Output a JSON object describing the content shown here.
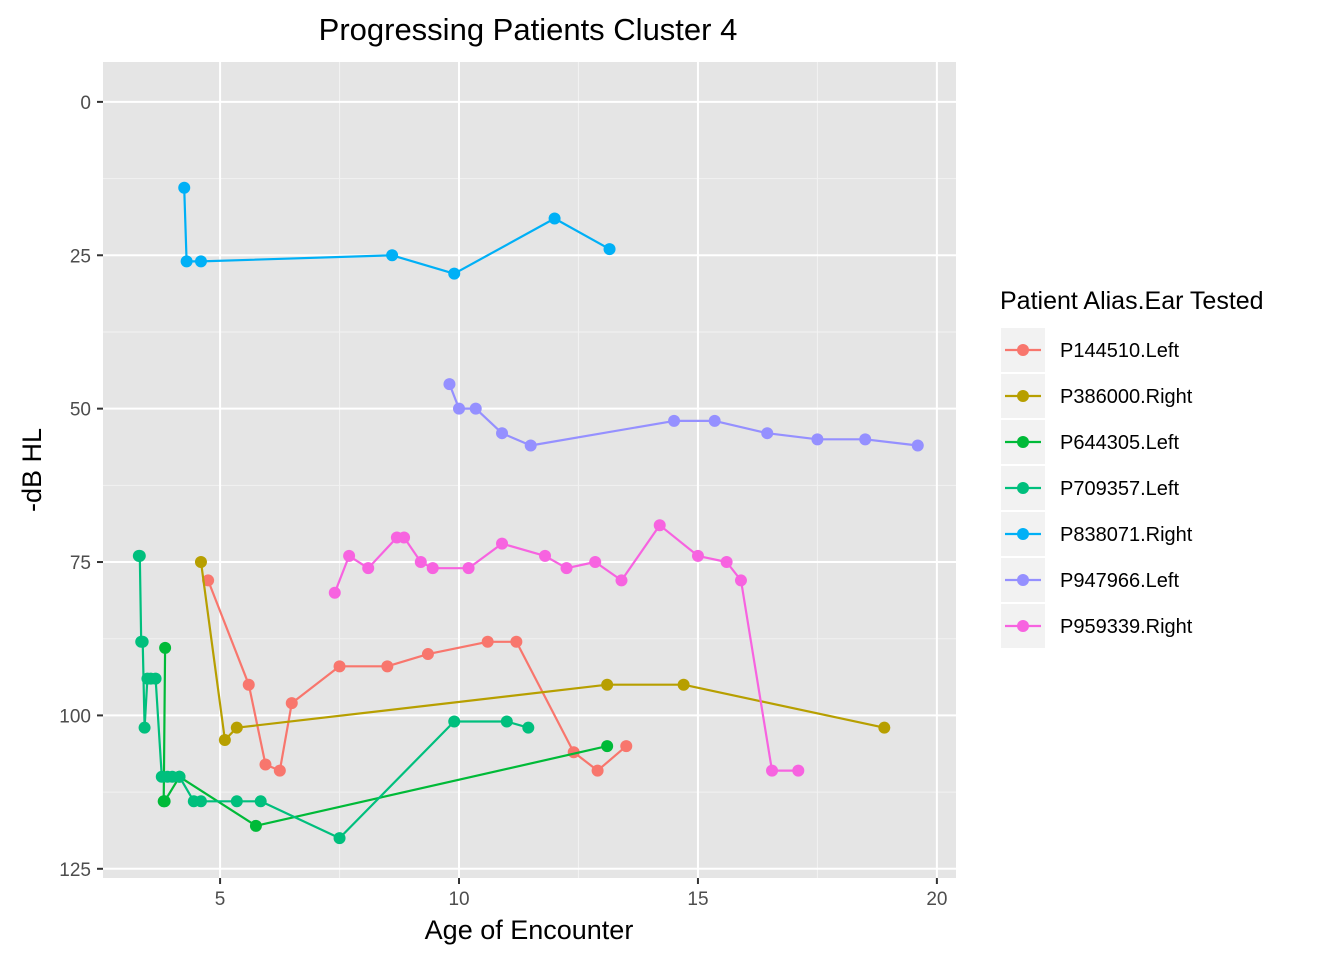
{
  "chart_data": {
    "type": "line",
    "title": "Progressing Patients Cluster 4",
    "xlabel": "Age of Encounter",
    "ylabel": "-dB HL",
    "xlim": [
      2.55,
      20.4
    ],
    "ylim": [
      126.5,
      -6.5
    ],
    "y_axis_reversed": true,
    "x_ticks": [
      5,
      10,
      15,
      20
    ],
    "y_ticks": [
      0,
      25,
      50,
      75,
      100,
      125
    ],
    "grid": true,
    "background": "#e5e5e5",
    "legend_title": "Patient Alias.Ear Tested",
    "legend_position": "right",
    "series": [
      {
        "name": "P144510.Left",
        "color": "#f8766d",
        "points": [
          [
            4.75,
            78
          ],
          [
            5.6,
            95
          ],
          [
            5.95,
            108
          ],
          [
            6.25,
            109
          ],
          [
            6.5,
            98
          ],
          [
            7.5,
            92
          ],
          [
            8.5,
            92
          ],
          [
            9.35,
            90
          ],
          [
            10.6,
            88
          ],
          [
            11.2,
            88
          ],
          [
            12.4,
            106
          ],
          [
            12.9,
            109
          ],
          [
            13.5,
            105
          ]
        ]
      },
      {
        "name": "P386000.Right",
        "color": "#b79f00",
        "points": [
          [
            4.6,
            75
          ],
          [
            5.1,
            104
          ],
          [
            5.35,
            102
          ],
          [
            13.1,
            95
          ],
          [
            14.7,
            95
          ],
          [
            18.9,
            102
          ]
        ]
      },
      {
        "name": "P644305.Left",
        "color": "#00ba38",
        "points": [
          [
            3.85,
            89
          ],
          [
            3.82,
            114
          ],
          [
            3.84,
            114
          ],
          [
            4.15,
            110
          ],
          [
            5.75,
            118
          ],
          [
            13.1,
            105
          ]
        ]
      },
      {
        "name": "P709357.Left",
        "color": "#00bf7d",
        "points": [
          [
            3.3,
            74
          ],
          [
            3.32,
            74
          ],
          [
            3.35,
            88
          ],
          [
            3.38,
            88
          ],
          [
            3.42,
            102
          ],
          [
            3.48,
            94
          ],
          [
            3.55,
            94
          ],
          [
            3.65,
            94
          ],
          [
            3.78,
            110
          ],
          [
            3.9,
            110
          ],
          [
            4.0,
            110
          ],
          [
            4.15,
            110
          ],
          [
            4.45,
            114
          ],
          [
            4.6,
            114
          ],
          [
            5.35,
            114
          ],
          [
            5.85,
            114
          ],
          [
            7.5,
            120
          ],
          [
            9.9,
            101
          ],
          [
            11.0,
            101
          ],
          [
            11.45,
            102
          ]
        ]
      },
      {
        "name": "P838071.Right",
        "color": "#00b0f6",
        "points": [
          [
            4.25,
            14
          ],
          [
            4.3,
            26
          ],
          [
            4.6,
            26
          ],
          [
            8.6,
            25
          ],
          [
            9.9,
            28
          ],
          [
            12.0,
            19
          ],
          [
            13.15,
            24
          ]
        ]
      },
      {
        "name": "P947966.Left",
        "color": "#9590ff",
        "points": [
          [
            9.8,
            46
          ],
          [
            10.0,
            50
          ],
          [
            10.35,
            50
          ],
          [
            10.9,
            54
          ],
          [
            11.5,
            56
          ],
          [
            14.5,
            52
          ],
          [
            15.35,
            52
          ],
          [
            16.45,
            54
          ],
          [
            17.5,
            55
          ],
          [
            18.5,
            55
          ],
          [
            19.6,
            56
          ]
        ]
      },
      {
        "name": "P959339.Right",
        "color": "#f763e0",
        "points": [
          [
            7.4,
            80
          ],
          [
            7.7,
            74
          ],
          [
            8.1,
            76
          ],
          [
            8.7,
            71
          ],
          [
            8.85,
            71
          ],
          [
            9.2,
            75
          ],
          [
            9.45,
            76
          ],
          [
            10.2,
            76
          ],
          [
            10.9,
            72
          ],
          [
            11.8,
            74
          ],
          [
            12.25,
            76
          ],
          [
            12.85,
            75
          ],
          [
            13.4,
            78
          ],
          [
            14.2,
            69
          ],
          [
            15.0,
            74
          ],
          [
            15.6,
            75
          ],
          [
            15.9,
            78
          ],
          [
            16.55,
            109
          ],
          [
            17.1,
            109
          ]
        ]
      }
    ]
  }
}
